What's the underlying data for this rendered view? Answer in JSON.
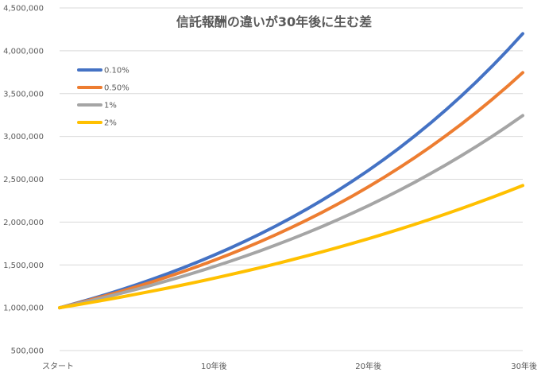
{
  "chart_data": {
    "type": "line",
    "title": "信託報酬の違いが30年後に生む差",
    "xlabel": "",
    "ylabel": "",
    "x_tick_labels": [
      "スタート",
      "10年後",
      "20年後",
      "30年後"
    ],
    "x_tick_positions": [
      0,
      10,
      20,
      30
    ],
    "xlim": [
      0,
      30
    ],
    "ylim": [
      500000,
      4500000
    ],
    "y_ticks": [
      500000,
      1000000,
      1500000,
      2000000,
      2500000,
      3000000,
      3500000,
      4000000,
      4500000
    ],
    "y_tick_labels": [
      "500,000",
      "1,000,000",
      "1,500,000",
      "2,000,000",
      "2,500,000",
      "3,000,000",
      "3,500,000",
      "4,000,000",
      "4,500,000"
    ],
    "grid": true,
    "legend_position": "top-left",
    "series": [
      {
        "name": "0.10%",
        "color": "#4472C4",
        "values": [
          1000000,
          1049000,
          1100401,
          1154320,
          1210882,
          1270215,
          1332456,
          1397746,
          1466236,
          1538082,
          1613448,
          1692507,
          1775440,
          1862437,
          1953696,
          2049427,
          2149849,
          2255191,
          2365696,
          2481615,
          2603214,
          2730772,
          2864580,
          3004945,
          3152187,
          3306644,
          3468670,
          3638635,
          3816928,
          4003957,
          4200151
        ]
      },
      {
        "name": "0.50%",
        "color": "#ED7D31",
        "values": [
          1000000,
          1045000,
          1092025,
          1141166,
          1192519,
          1246182,
          1302260,
          1360862,
          1422101,
          1486095,
          1552969,
          1622853,
          1695881,
          1772196,
          1851945,
          1935282,
          2022370,
          2113377,
          2208479,
          2307860,
          2411714,
          2520241,
          2633652,
          2752166,
          2876014,
          3005434,
          3140679,
          3282010,
          3429700,
          3584037,
          3745318
        ]
      },
      {
        "name": "1%",
        "color": "#A5A5A5",
        "values": [
          1000000,
          1040000,
          1081600,
          1124864,
          1169859,
          1216653,
          1265319,
          1315932,
          1368569,
          1423312,
          1480244,
          1539454,
          1601032,
          1665074,
          1731676,
          1800944,
          1872981,
          1947900,
          2025817,
          2106849,
          2191123,
          2278768,
          2369919,
          2464716,
          2563304,
          2665836,
          2772470,
          2883369,
          2998703,
          3118651,
          3243398
        ]
      },
      {
        "name": "2%",
        "color": "#FFC000",
        "values": [
          1000000,
          1030000,
          1060900,
          1092727,
          1125509,
          1159274,
          1194052,
          1229874,
          1266770,
          1304773,
          1343916,
          1384234,
          1425761,
          1468534,
          1512590,
          1557967,
          1604706,
          1652848,
          1702433,
          1753506,
          1806111,
          1860295,
          1916103,
          1973587,
          2032794,
          2093778,
          2156591,
          2221289,
          2287928,
          2356566,
          2427262
        ]
      }
    ]
  }
}
